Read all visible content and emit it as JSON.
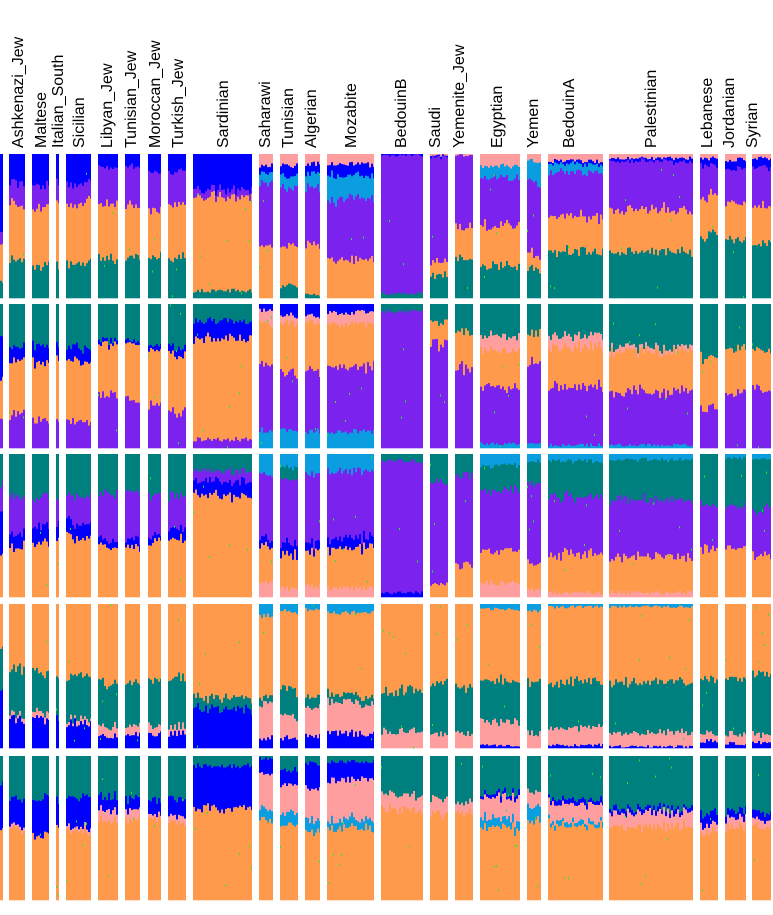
{
  "chart_data": {
    "type": "bar",
    "subtype": "stacked-admixture",
    "title": "",
    "xlabel": "",
    "ylabel": "",
    "ylim": [
      0,
      1
    ],
    "grid": false,
    "legend": "none",
    "colors": {
      "blue": "#0000FF",
      "purple": "#7B22EE",
      "orange": "#FF9A4C",
      "teal": "#007F7F",
      "pink": "#FF9E9E",
      "lightblue": "#0A9EE0",
      "green": "#22EE22"
    },
    "populations": [
      "",
      "Ashkenazi_Jew",
      "Maltese",
      "Italian_South",
      "Sicilian",
      "Libyan_Jew",
      "Tunisian_Jew",
      "Moroccan_Jew",
      "Turkish_Jew",
      "Sardinian",
      "Saharawi",
      "Tunisian",
      "Algerian",
      "Mozabite",
      "BedouinB",
      "Saudi",
      "Yemenite_Jew",
      "Egyptian",
      "Yemen",
      "BedouinA",
      "Palestinian",
      "Lebanese",
      "Jordanian",
      "Syrian"
    ],
    "panels": [
      {
        "component_order": [
          "pink",
          "blue",
          "lightblue",
          "purple",
          "orange",
          "teal"
        ],
        "fractions": [
          [
            0,
            0.55,
            0,
            0.1,
            0.25,
            0.1
          ],
          [
            0,
            0.2,
            0,
            0.15,
            0.38,
            0.27
          ],
          [
            0,
            0.22,
            0,
            0.15,
            0.4,
            0.23
          ],
          [
            0,
            0.2,
            0,
            0.15,
            0.42,
            0.23
          ],
          [
            0,
            0.2,
            0,
            0.14,
            0.42,
            0.24
          ],
          [
            0,
            0.1,
            0,
            0.25,
            0.37,
            0.28
          ],
          [
            0,
            0.08,
            0,
            0.28,
            0.36,
            0.28
          ],
          [
            0,
            0.12,
            0,
            0.25,
            0.33,
            0.3
          ],
          [
            0,
            0.12,
            0,
            0.22,
            0.38,
            0.28
          ],
          [
            0,
            0.25,
            0,
            0.05,
            0.65,
            0.05
          ],
          [
            0.08,
            0.05,
            0.07,
            0.45,
            0.35,
            0
          ],
          [
            0.08,
            0.08,
            0.08,
            0.4,
            0.28,
            0.08
          ],
          [
            0.07,
            0.06,
            0.1,
            0.4,
            0.35,
            0.02
          ],
          [
            0.07,
            0.08,
            0.16,
            0.42,
            0.27,
            0
          ],
          [
            0,
            0.01,
            0,
            0.96,
            0,
            0.03
          ],
          [
            0.01,
            0.01,
            0,
            0.73,
            0.1,
            0.15
          ],
          [
            0.01,
            0,
            0,
            0.5,
            0.22,
            0.27
          ],
          [
            0.08,
            0,
            0.08,
            0.33,
            0.28,
            0.23
          ],
          [
            0.05,
            0,
            0.15,
            0.5,
            0.1,
            0.2
          ],
          [
            0.05,
            0.02,
            0.06,
            0.31,
            0.24,
            0.32
          ],
          [
            0.03,
            0.02,
            0,
            0.33,
            0.3,
            0.32
          ],
          [
            0.03,
            0.05,
            0,
            0.22,
            0.27,
            0.43
          ],
          [
            0.04,
            0.06,
            0,
            0.24,
            0.26,
            0.4
          ],
          [
            0.03,
            0.06,
            0,
            0.27,
            0.26,
            0.38
          ]
        ]
      },
      {
        "component_order": [
          "teal",
          "blue",
          "pink",
          "orange",
          "purple",
          "lightblue"
        ],
        "fractions": [
          [
            0.2,
            0.3,
            0,
            0.3,
            0.2,
            0
          ],
          [
            0.3,
            0.1,
            0,
            0.37,
            0.23,
            0
          ],
          [
            0.28,
            0.12,
            0,
            0.4,
            0.2,
            0
          ],
          [
            0.3,
            0.1,
            0,
            0.42,
            0.18,
            0
          ],
          [
            0.3,
            0.1,
            0,
            0.42,
            0.18,
            0
          ],
          [
            0.25,
            0.03,
            0,
            0.35,
            0.37,
            0
          ],
          [
            0.25,
            0.02,
            0,
            0.4,
            0.33,
            0
          ],
          [
            0.28,
            0.03,
            0,
            0.39,
            0.3,
            0
          ],
          [
            0.3,
            0.05,
            0,
            0.4,
            0.25,
            0
          ],
          [
            0.12,
            0.12,
            0,
            0.7,
            0.06,
            0
          ],
          [
            0,
            0.04,
            0.1,
            0.27,
            0.47,
            0.12
          ],
          [
            0,
            0.08,
            0.05,
            0.35,
            0.4,
            0.12
          ],
          [
            0,
            0.08,
            0.04,
            0.34,
            0.42,
            0.12
          ],
          [
            0,
            0.06,
            0.08,
            0.3,
            0.45,
            0.11
          ],
          [
            0.05,
            0,
            0,
            0,
            0.95,
            0
          ],
          [
            0.13,
            0,
            0,
            0.15,
            0.72,
            0
          ],
          [
            0.2,
            0,
            0,
            0.25,
            0.55,
            0
          ],
          [
            0.22,
            0,
            0.1,
            0.25,
            0.4,
            0.03
          ],
          [
            0.2,
            0,
            0,
            0.2,
            0.57,
            0.03
          ],
          [
            0.22,
            0,
            0.08,
            0.28,
            0.4,
            0.02
          ],
          [
            0.3,
            0,
            0.03,
            0.28,
            0.37,
            0.02
          ],
          [
            0.37,
            0,
            0,
            0.35,
            0.28,
            0
          ],
          [
            0.32,
            0,
            0,
            0.3,
            0.38,
            0
          ],
          [
            0.33,
            0,
            0,
            0.27,
            0.4,
            0
          ]
        ]
      },
      {
        "component_order": [
          "lightblue",
          "teal",
          "purple",
          "blue",
          "orange",
          "pink"
        ],
        "fractions": [
          [
            0,
            0.2,
            0.2,
            0.3,
            0.3,
            0
          ],
          [
            0,
            0.3,
            0.25,
            0.1,
            0.35,
            0
          ],
          [
            0,
            0.3,
            0.2,
            0.12,
            0.38,
            0
          ],
          [
            0,
            0.32,
            0.18,
            0.1,
            0.4,
            0
          ],
          [
            0,
            0.3,
            0.18,
            0.1,
            0.42,
            0
          ],
          [
            0,
            0.27,
            0.33,
            0.05,
            0.35,
            0
          ],
          [
            0,
            0.27,
            0.33,
            0.05,
            0.35,
            0
          ],
          [
            0,
            0.3,
            0.28,
            0.04,
            0.38,
            0
          ],
          [
            0,
            0.3,
            0.23,
            0.07,
            0.4,
            0
          ],
          [
            0,
            0.12,
            0.07,
            0.1,
            0.71,
            0
          ],
          [
            0.14,
            0,
            0.45,
            0.05,
            0.26,
            0.1
          ],
          [
            0.1,
            0.08,
            0.45,
            0.08,
            0.23,
            0.06
          ],
          [
            0.15,
            0,
            0.47,
            0.06,
            0.25,
            0.07
          ],
          [
            0.12,
            0,
            0.47,
            0.07,
            0.28,
            0.06
          ],
          [
            0,
            0.05,
            0.92,
            0.03,
            0,
            0
          ],
          [
            0,
            0.2,
            0.7,
            0,
            0.1,
            0
          ],
          [
            0,
            0.15,
            0.62,
            0,
            0.23,
            0
          ],
          [
            0.08,
            0.18,
            0.42,
            0,
            0.22,
            0.1
          ],
          [
            0.05,
            0.15,
            0.55,
            0,
            0.2,
            0.05
          ],
          [
            0.05,
            0.25,
            0.4,
            0,
            0.27,
            0.03
          ],
          [
            0.04,
            0.28,
            0.4,
            0,
            0.25,
            0.03
          ],
          [
            0,
            0.37,
            0.3,
            0,
            0.33,
            0
          ],
          [
            0.03,
            0.33,
            0.3,
            0,
            0.34,
            0
          ],
          [
            0.03,
            0.35,
            0.33,
            0,
            0.29,
            0
          ]
        ]
      },
      {
        "component_order": [
          "lightblue",
          "orange",
          "teal",
          "pink",
          "blue"
        ],
        "fractions": [
          [
            0,
            0.3,
            0.3,
            0,
            0.4
          ],
          [
            0,
            0.45,
            0.32,
            0.03,
            0.2
          ],
          [
            0,
            0.48,
            0.28,
            0.04,
            0.2
          ],
          [
            0,
            0.5,
            0.3,
            0,
            0.2
          ],
          [
            0,
            0.5,
            0.3,
            0.03,
            0.17
          ],
          [
            0,
            0.55,
            0.3,
            0.07,
            0.08
          ],
          [
            0,
            0.55,
            0.3,
            0.06,
            0.09
          ],
          [
            0,
            0.52,
            0.32,
            0.06,
            0.1
          ],
          [
            0,
            0.5,
            0.35,
            0.05,
            0.1
          ],
          [
            0,
            0.65,
            0.08,
            0,
            0.27
          ],
          [
            0.08,
            0.55,
            0.05,
            0.25,
            0.07
          ],
          [
            0.05,
            0.55,
            0.18,
            0.15,
            0.07
          ],
          [
            0.04,
            0.6,
            0.08,
            0.2,
            0.08
          ],
          [
            0.06,
            0.57,
            0.05,
            0.22,
            0.1
          ],
          [
            0,
            0.6,
            0.28,
            0.12,
            0
          ],
          [
            0,
            0.55,
            0.35,
            0.1,
            0
          ],
          [
            0,
            0.57,
            0.33,
            0.1,
            0
          ],
          [
            0.04,
            0.5,
            0.28,
            0.16,
            0.02
          ],
          [
            0.05,
            0.5,
            0.35,
            0.1,
            0
          ],
          [
            0.02,
            0.52,
            0.32,
            0.12,
            0.02
          ],
          [
            0.02,
            0.52,
            0.35,
            0.1,
            0.01
          ],
          [
            0,
            0.52,
            0.38,
            0.05,
            0.05
          ],
          [
            0,
            0.52,
            0.38,
            0.07,
            0.03
          ],
          [
            0,
            0.48,
            0.42,
            0.06,
            0.04
          ]
        ]
      },
      {
        "component_order": [
          "teal",
          "blue",
          "pink",
          "lightblue",
          "orange"
        ],
        "fractions": [
          [
            0.2,
            0.3,
            0,
            0,
            0.5
          ],
          [
            0.3,
            0.2,
            0.02,
            0,
            0.48
          ],
          [
            0.3,
            0.25,
            0,
            0,
            0.45
          ],
          [
            0.3,
            0.2,
            0,
            0,
            0.5
          ],
          [
            0.28,
            0.22,
            0.02,
            0,
            0.48
          ],
          [
            0.28,
            0.09,
            0.07,
            0,
            0.56
          ],
          [
            0.3,
            0.08,
            0.06,
            0,
            0.56
          ],
          [
            0.3,
            0.1,
            0.03,
            0,
            0.57
          ],
          [
            0.3,
            0.12,
            0.05,
            0,
            0.53
          ],
          [
            0.07,
            0.29,
            0,
            0,
            0.64
          ],
          [
            0.02,
            0.1,
            0.24,
            0.08,
            0.56
          ],
          [
            0.1,
            0.1,
            0.2,
            0.08,
            0.52
          ],
          [
            0.05,
            0.17,
            0.22,
            0.08,
            0.48
          ],
          [
            0.04,
            0.12,
            0.28,
            0.06,
            0.5
          ],
          [
            0.27,
            0,
            0.1,
            0,
            0.63
          ],
          [
            0.3,
            0,
            0.1,
            0,
            0.6
          ],
          [
            0.33,
            0,
            0.07,
            0,
            0.6
          ],
          [
            0.26,
            0.03,
            0.15,
            0.06,
            0.5
          ],
          [
            0.25,
            0,
            0.1,
            0.1,
            0.55
          ],
          [
            0.3,
            0.03,
            0.12,
            0.03,
            0.52
          ],
          [
            0.36,
            0.03,
            0.1,
            0,
            0.51
          ],
          [
            0.4,
            0.08,
            0.05,
            0,
            0.47
          ],
          [
            0.38,
            0.05,
            0.07,
            0,
            0.5
          ],
          [
            0.4,
            0.05,
            0.05,
            0,
            0.5
          ]
        ]
      }
    ]
  }
}
